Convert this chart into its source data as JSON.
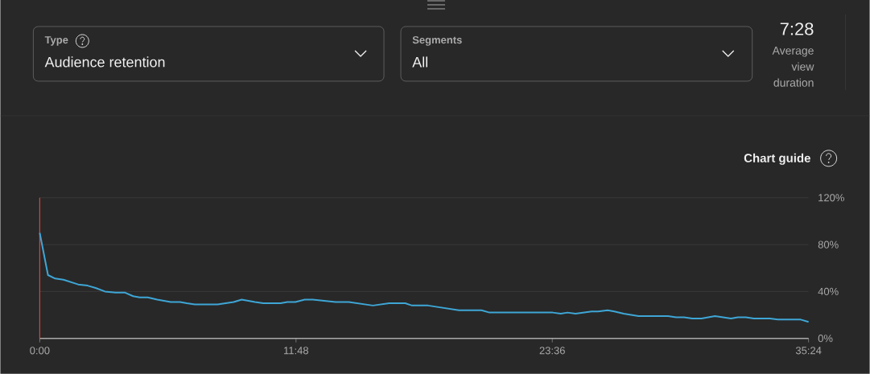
{
  "chart_data": {
    "type": "line",
    "annotations": [
      "Type",
      "Audience retention",
      "Segments",
      "All",
      "7:28",
      "Average view duration",
      "Chart guide"
    ],
    "x": [
      0,
      0.38,
      0.71,
      1.09,
      1.77,
      2.2,
      2.57,
      3.0,
      3.49,
      3.93,
      4.3,
      4.6,
      4.97,
      5.41,
      6.03,
      6.46,
      6.77,
      7.14,
      8.19,
      8.56,
      8.93,
      9.3,
      9.91,
      10.29,
      11.09,
      11.4,
      11.77,
      12.2,
      12.57,
      13.62,
      14.23,
      15.34,
      16.09,
      16.83,
      17.14,
      17.88,
      19.3,
      19.67,
      20.34,
      20.71,
      21.77,
      22.14,
      23.56,
      23.62,
      23.99,
      24.3,
      24.67,
      25.41,
      25.71,
      26.15,
      26.46,
      26.89,
      27.57,
      28.93,
      29.3,
      29.67,
      30.04,
      30.47,
      31.09,
      31.83,
      32.14,
      32.51,
      32.88,
      33.62,
      33.99,
      35.04,
      35.4
    ],
    "values": [
      90,
      54,
      51,
      50,
      46,
      45,
      43,
      40,
      39,
      39,
      36,
      35,
      35,
      33,
      31,
      31,
      30,
      29,
      29,
      30,
      31,
      33,
      31,
      30,
      30,
      31,
      31,
      33,
      33,
      31,
      31,
      28,
      30,
      30,
      28,
      28,
      24,
      24,
      24,
      22,
      22,
      22,
      22,
      22,
      21,
      22,
      21,
      23,
      23,
      24,
      23,
      21,
      19,
      19,
      18,
      18,
      17,
      17,
      19,
      17,
      18,
      18,
      17,
      17,
      16,
      16,
      14
    ],
    "color": "#3ea6d6",
    "xlim": [
      0,
      35.4
    ],
    "xticks": [
      {
        "value": 0,
        "label": "0:00"
      },
      {
        "value": 11.8,
        "label": "11:48"
      },
      {
        "value": 23.6,
        "label": "23:36"
      },
      {
        "value": 35.4,
        "label": "35:24"
      }
    ],
    "ylim": [
      0,
      120
    ],
    "yticks": [
      {
        "value": 0,
        "label": "0%"
      },
      {
        "value": 40,
        "label": "40%"
      },
      {
        "value": 80,
        "label": "80%"
      },
      {
        "value": 120,
        "label": "120%"
      }
    ],
    "grid": "y",
    "ref_lines": [
      {
        "axis": "x",
        "value": 0,
        "color": "#d9453b"
      }
    ]
  }
}
